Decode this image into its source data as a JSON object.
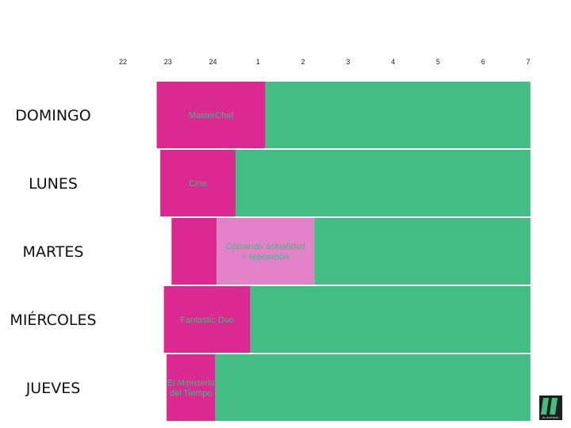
{
  "chart_data": {
    "type": "bar",
    "subtype": "horizontal-timeline",
    "x_ticks": [
      "22",
      "23",
      "24",
      "1",
      "2",
      "3",
      "4",
      "5",
      "6",
      "7"
    ],
    "x_range_hours": [
      22,
      31
    ],
    "colors": {
      "programme": "#dc2891",
      "secondary_programme": "#e382c8",
      "after": "#44bd85",
      "label_text": "#3dbb84"
    },
    "rows": [
      {
        "day": "DOMINGO",
        "segments": [
          {
            "label_lines": [
              "MasterChef"
            ],
            "start": 22.75,
            "end": 25.16,
            "kind": "programme"
          },
          {
            "label_lines": [],
            "start": 25.16,
            "end": 31.05,
            "kind": "after"
          }
        ]
      },
      {
        "day": "LUNES",
        "segments": [
          {
            "label_lines": [
              "Cine"
            ],
            "start": 22.83,
            "end": 24.5,
            "kind": "programme"
          },
          {
            "label_lines": [],
            "start": 24.5,
            "end": 31.05,
            "kind": "after"
          }
        ]
      },
      {
        "day": "MARTES",
        "segments": [
          {
            "label_lines": [],
            "start": 23.08,
            "end": 24.08,
            "kind": "programme"
          },
          {
            "label_lines": [
              "Comando actualidad",
              "+ reposición"
            ],
            "start": 24.08,
            "end": 26.25,
            "kind": "secondary_programme"
          },
          {
            "label_lines": [],
            "start": 26.25,
            "end": 31.05,
            "kind": "after"
          }
        ]
      },
      {
        "day": "MIÉRCOLES",
        "segments": [
          {
            "label_lines": [
              "Fantastic Duo"
            ],
            "start": 22.91,
            "end": 24.83,
            "kind": "programme"
          },
          {
            "label_lines": [],
            "start": 24.83,
            "end": 31.05,
            "kind": "after"
          }
        ]
      },
      {
        "day": "JUEVES",
        "segments": [
          {
            "label_lines": [
              "El Ministerio",
              "del Tiempo"
            ],
            "start": 22.97,
            "end": 24.05,
            "kind": "programme"
          },
          {
            "label_lines": [],
            "start": 24.05,
            "end": 31.05,
            "kind": "after"
          }
        ]
      }
    ],
    "legend": "none",
    "grid": false
  },
  "logo": {
    "text": "EL HUFFPOST",
    "name": "huffpost-logo"
  }
}
